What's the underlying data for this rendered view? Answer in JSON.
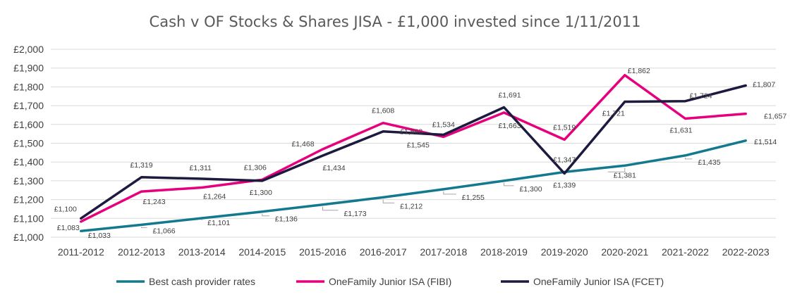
{
  "chart_data": {
    "type": "line",
    "title": "Cash v OF Stocks & Shares JISA - £1,000 invested since 1/11/2011",
    "xlabel": "",
    "ylabel": "",
    "ylim": [
      1000,
      2000
    ],
    "y_ticks": [
      "£1,000",
      "£1,100",
      "£1,200",
      "£1,300",
      "£1,400",
      "£1,500",
      "£1,600",
      "£1,700",
      "£1,800",
      "£1,900",
      "£2,000"
    ],
    "grid": true,
    "legend_position": "bottom",
    "categories": [
      "2011-2012",
      "2012-2013",
      "2013-2014",
      "2014-2015",
      "2015-2016",
      "2016-2017",
      "2017-2018",
      "2018-2019",
      "2019-2020",
      "2020-2021",
      "2021-2022",
      "2022-2023"
    ],
    "series": [
      {
        "name": "Best cash provider rates",
        "color": "#13798f",
        "values": [
          1033,
          1066,
          1101,
          1136,
          1173,
          1212,
          1255,
          1300,
          1347,
          1381,
          1435,
          1514
        ],
        "labels": [
          "£1,033",
          "£1,066",
          "£1,101",
          "£1,136",
          "£1,173",
          "£1,212",
          "£1,255",
          "£1,300",
          "£1,347",
          "£1,381",
          "£1,435",
          "£1,514"
        ]
      },
      {
        "name": "OneFamily Junior ISA (FIBI)",
        "color": "#e6007e",
        "values": [
          1083,
          1243,
          1264,
          1306,
          1468,
          1608,
          1534,
          1663,
          1519,
          1862,
          1631,
          1657
        ],
        "labels": [
          "£1,083",
          "£1,243",
          "£1,264",
          "£1,306",
          "£1,468",
          "£1,608",
          "£1,534",
          "£1,663",
          "£1,519",
          "£1,862",
          "£1,631",
          "£1,657"
        ]
      },
      {
        "name": "OneFamily Junior ISA (FCET)",
        "color": "#1c1a3e",
        "values": [
          1100,
          1319,
          1311,
          1300,
          1434,
          1563,
          1545,
          1691,
          1339,
          1721,
          1724,
          1807
        ],
        "labels": [
          "£1,100",
          "£1,319",
          "£1,311",
          "£1,300",
          "£1,434",
          "£1,563",
          "£1,545",
          "£1,691",
          "£1,339",
          "£1,721",
          "£1,724",
          "£1,807"
        ]
      }
    ]
  }
}
